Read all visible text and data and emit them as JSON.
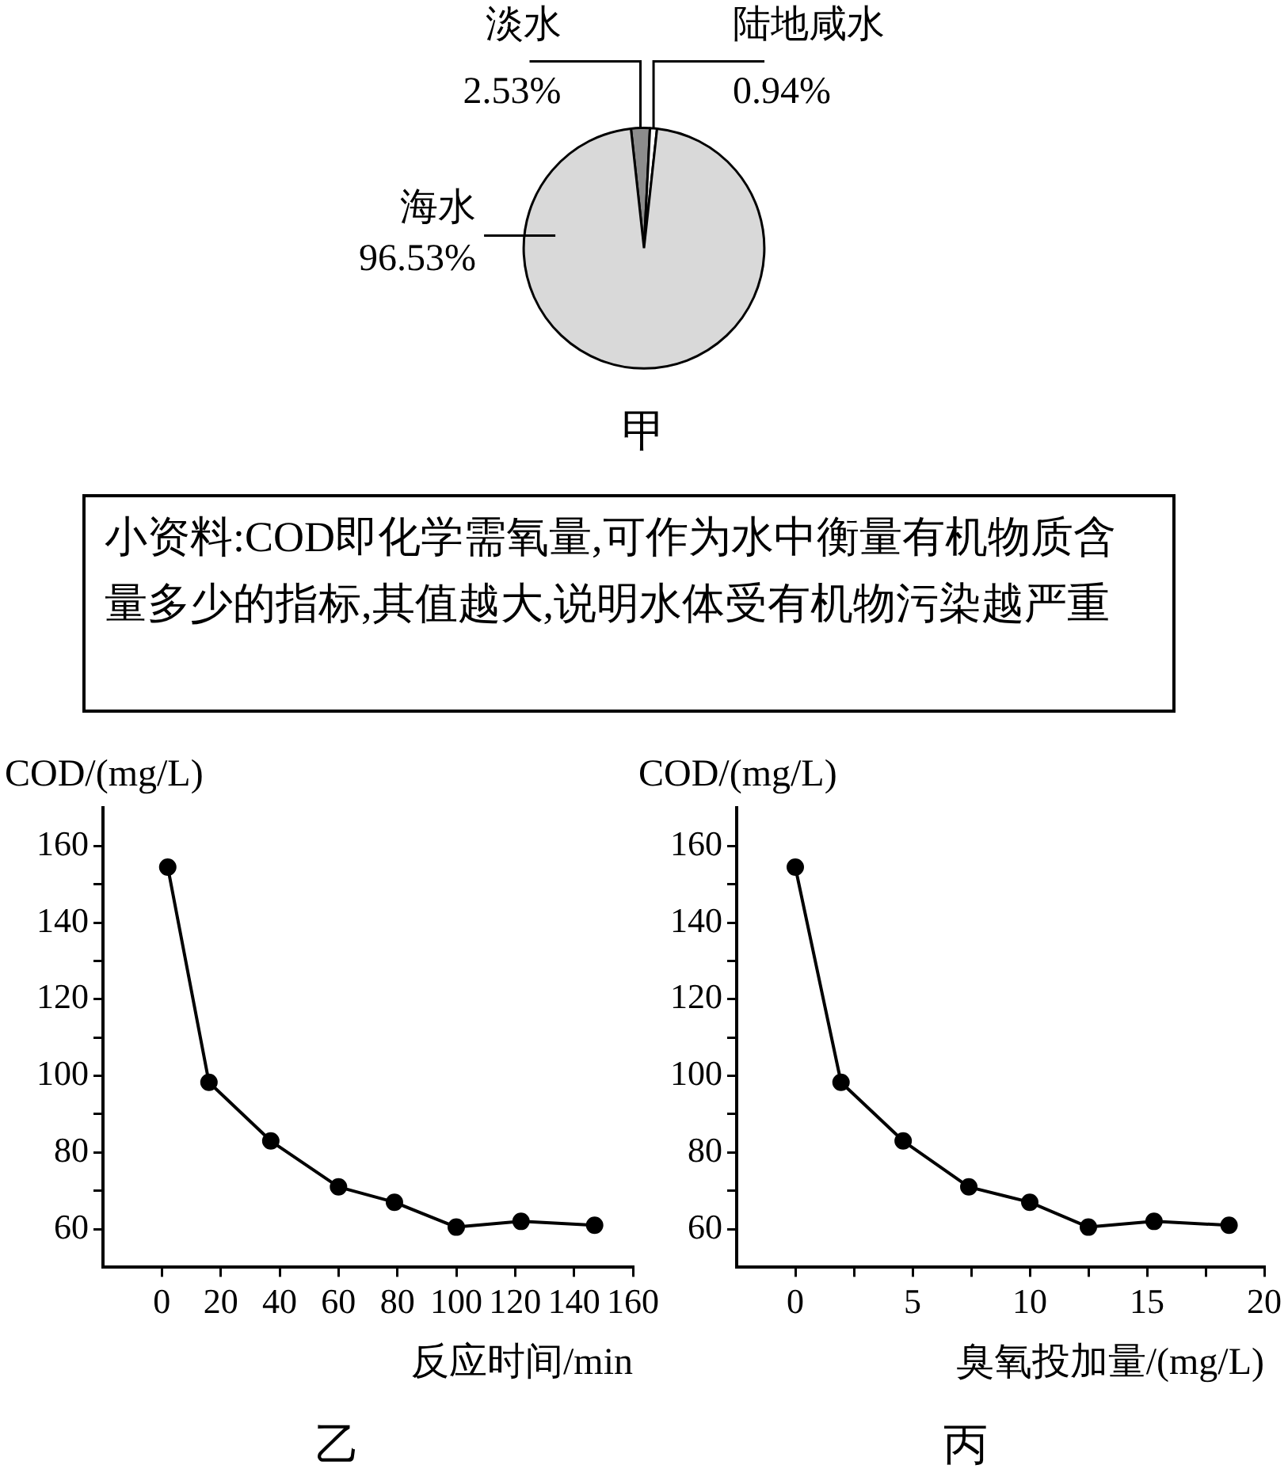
{
  "chart_data": [
    {
      "type": "pie",
      "title": "甲",
      "categories": [
        "淡水",
        "陆地咸水",
        "海水"
      ],
      "values": [
        2.53,
        0.94,
        96.53
      ],
      "colors": [
        "#8c8c8c",
        "#ffffff",
        "#d9d9d9"
      ],
      "value_labels": [
        "2.53%",
        "0.94%",
        "96.53%"
      ]
    },
    {
      "type": "other",
      "annotations": [
        "小资料:COD即化学需氧量,可作为水中衡量有机物质含量多少的指标,其值越大,说明水体受有机物污染越严重"
      ]
    },
    {
      "type": "line",
      "title": "乙",
      "xlabel": "反应时间/min",
      "ylabel": "COD/(mg/L)",
      "x": [
        2,
        16,
        37,
        60,
        79,
        100,
        122,
        147
      ],
      "values": [
        154.5,
        98.3,
        83,
        71,
        67,
        60.5,
        62,
        61
      ],
      "color": "#000000",
      "marker": "circle",
      "line_style": "solid",
      "xlim": [
        -20,
        160
      ],
      "xticks": [
        0,
        20,
        40,
        60,
        80,
        100,
        120,
        140,
        160
      ],
      "ylim": [
        50,
        170
      ],
      "yticks": [
        60,
        {
          "value": 70,
          "label": null
        },
        80,
        {
          "value": 90,
          "label": null
        },
        100,
        {
          "value": 110,
          "label": null
        },
        120,
        {
          "value": 130,
          "label": null
        },
        140,
        {
          "value": 150,
          "label": null
        },
        160
      ]
    },
    {
      "type": "line",
      "title": "丙",
      "xlabel": "臭氧投加量/(mg/L)",
      "ylabel": "COD/(mg/L)",
      "x": [
        0,
        1.95,
        4.6,
        7.4,
        10,
        12.5,
        15.3,
        18.5
      ],
      "values": [
        154.5,
        98.3,
        83,
        71,
        67,
        60.5,
        62,
        61
      ],
      "color": "#000000",
      "marker": "circle",
      "line_style": "solid",
      "xlim": [
        -2.5,
        20
      ],
      "xticks": [
        0,
        {
          "value": 2.5,
          "label": null
        },
        5,
        {
          "value": 7.5,
          "label": null
        },
        10,
        {
          "value": 12.5,
          "label": null
        },
        15,
        {
          "value": 17.5,
          "label": null
        },
        20
      ],
      "ylim": [
        50,
        170
      ],
      "yticks": [
        60,
        {
          "value": 70,
          "label": null
        },
        80,
        {
          "value": 90,
          "label": null
        },
        100,
        {
          "value": 110,
          "label": null
        },
        120,
        {
          "value": 130,
          "label": null
        },
        140,
        {
          "value": 150,
          "label": null
        },
        160
      ]
    }
  ]
}
